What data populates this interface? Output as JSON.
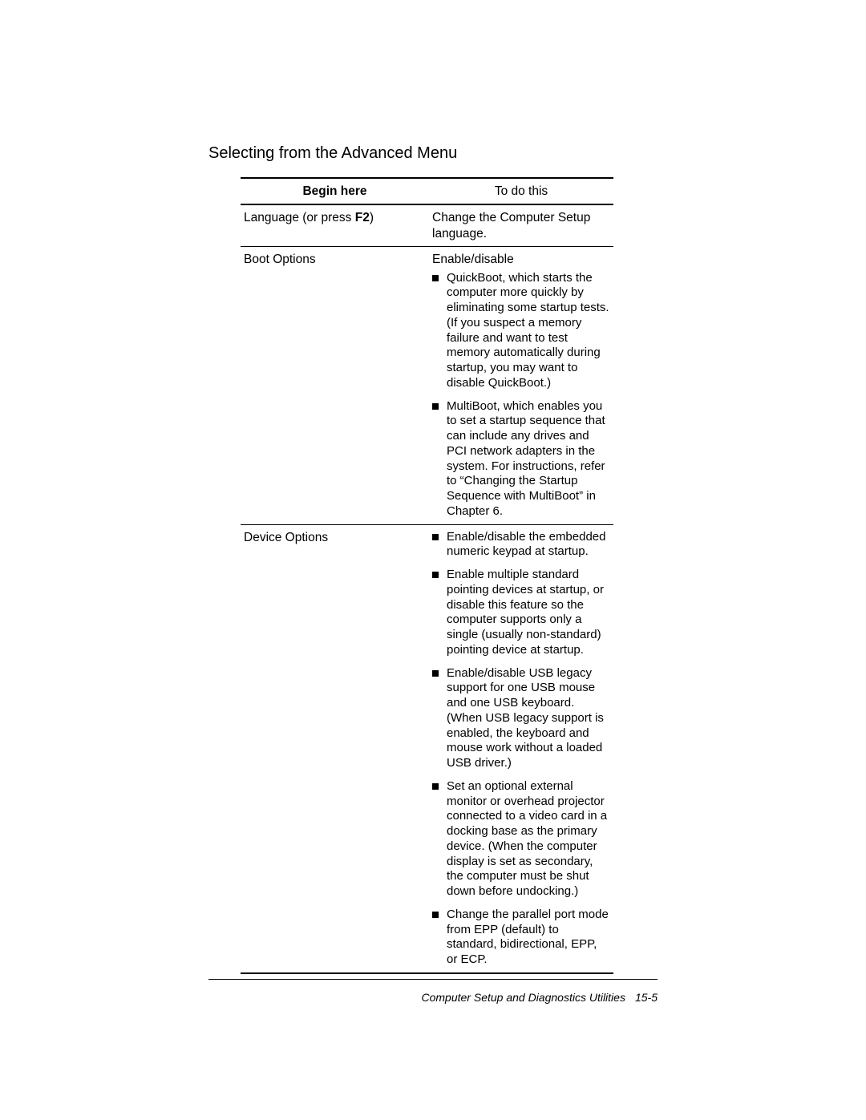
{
  "section_title": "Selecting from the Advanced Menu",
  "table": {
    "header": {
      "col1": "Begin here",
      "col2": "To do this"
    },
    "rows": [
      {
        "col1_pre": "Language (or press ",
        "col1_key": "F2",
        "col1_post": ")",
        "col2_text": "Change the Computer Setup language.",
        "bullets": []
      },
      {
        "col1": "Boot Options",
        "col2_text": "Enable/disable",
        "bullets": [
          "QuickBoot, which starts the computer more quickly by eliminating some startup tests. (If you suspect a memory failure and want to test memory automatically during startup, you may want to disable QuickBoot.)",
          "MultiBoot, which enables you to set a startup sequence that can include any drives and PCI network adapters in the system. For instructions, refer to “Changing the Startup Sequence with MultiBoot” in Chapter 6."
        ]
      },
      {
        "col1": "Device Options",
        "col2_text": "",
        "bullets": [
          "Enable/disable the embedded numeric keypad at startup.",
          "Enable multiple standard pointing devices at startup, or disable this feature so the computer supports only a single (usually non-standard) pointing device at startup.",
          "Enable/disable USB legacy support for one USB mouse and one USB keyboard. (When USB legacy support is enabled, the keyboard and mouse work without a loaded USB driver.)",
          "Set an optional external monitor or overhead projector connected to a video card in a docking base as the primary device. (When the computer display is set as secondary, the computer must be shut down before undocking.)",
          "Change the parallel port mode from EPP (default) to standard, bidirectional, EPP, or ECP."
        ]
      }
    ]
  },
  "footer": {
    "title": "Computer Setup and Diagnostics Utilities",
    "page": "15-5"
  }
}
